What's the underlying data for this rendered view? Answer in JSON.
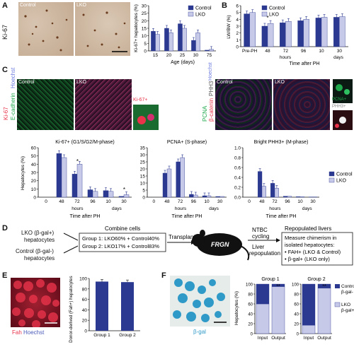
{
  "panel_letters": [
    "A",
    "B",
    "C",
    "D",
    "E",
    "F"
  ],
  "colors": {
    "control": "#2b3990",
    "lko": "#c7c9e8",
    "mid": "#4a5bb8",
    "red": "#e8334a",
    "green": "#1fa84b"
  },
  "panelA": {
    "side_label": "Ki-67",
    "img_labels": [
      "Control",
      "LKO"
    ]
  },
  "panelC": {
    "side_labels": [
      "Ki-67",
      "E-cadherin",
      "Hoechst"
    ],
    "right_side_labels": [
      "PCNA",
      "β-catenin",
      "PHH3",
      "Hoechst"
    ],
    "img_labels": [
      "Control",
      "LKO",
      "Control",
      "LKO"
    ],
    "inset_labels": [
      "Ki-67+",
      "PCNA+",
      "PHH3+"
    ]
  },
  "panelD": {
    "left1": "LKO (β-gal+)",
    "left1b": "hepatocytes",
    "left2": "Control (β-gal-)",
    "left2b": "hepatocytes",
    "combine_title": "Combine cells",
    "group1": "Group 1: LKO60% + Control40%",
    "group2": "Group 2: LKO17% + Control83%",
    "transplant": "Transplant",
    "mouse": "FRGN",
    "ntbc1": "NTBC",
    "ntbc2": "cycling",
    "liver1": "Liver",
    "liver2": "repopulation",
    "repop_title": "Repopulated livers",
    "repop_lines": [
      "Measure chimerism in",
      "isolated hepatocytes:",
      "• FAH+ (LKO & Control)",
      "• β-gal+ (LKO only)"
    ]
  },
  "panelE": {
    "img_labels": [
      "Fah",
      "Hoechst"
    ]
  },
  "panelF": {
    "img_label": "β-gal"
  },
  "chart_data": [
    {
      "id": "A",
      "type": "bar",
      "ylabel": "Ki-67+ hepatocytes (%)",
      "xlabel": "Age (days)",
      "categories": [
        "15",
        "20",
        "25",
        "30",
        "75"
      ],
      "ylim": [
        0,
        30
      ],
      "yticks": [
        0,
        5,
        10,
        15,
        20,
        25,
        30
      ],
      "legend": "top-right",
      "series": [
        {
          "name": "Control",
          "values": [
            13,
            15,
            18,
            7,
            0.5
          ]
        },
        {
          "name": "LKO",
          "values": [
            11,
            12,
            15,
            12,
            1
          ]
        }
      ]
    },
    {
      "id": "B",
      "type": "bar",
      "ylabel": "LW/BW (%)",
      "xlabel": "Time after PH",
      "categories": [
        "Pre-PH",
        "48",
        "72",
        "96",
        "10",
        "30"
      ],
      "group_labels": [
        "hours",
        "days"
      ],
      "ylim": [
        0,
        6
      ],
      "yticks": [
        0,
        1,
        2,
        3,
        4,
        5,
        6
      ],
      "legend": "top-left",
      "annotations": [
        "*"
      ],
      "series": [
        {
          "name": "Control",
          "values": [
            4.8,
            3.0,
            3.5,
            3.8,
            4.2,
            4.3
          ]
        },
        {
          "name": "LKO",
          "values": [
            5.0,
            3.4,
            3.7,
            4.0,
            4.3,
            4.4
          ]
        }
      ]
    },
    {
      "id": "C1",
      "type": "bar",
      "title": "Ki-67+ (G1/S/G2/M-phase)",
      "ylabel": "Hepatocytes (%)",
      "xlabel": "Time after PH",
      "categories": [
        "0",
        "48",
        "72",
        "96",
        "10",
        "30"
      ],
      "group_labels": [
        "hours",
        "days"
      ],
      "ylim": [
        0,
        60
      ],
      "yticks": [
        0,
        10,
        20,
        30,
        40,
        50,
        60
      ],
      "annotations": [
        "*",
        "*"
      ],
      "series": [
        {
          "name": "Control",
          "values": [
            0,
            53,
            28,
            9,
            8,
            1
          ]
        },
        {
          "name": "LKO",
          "values": [
            0,
            48,
            40,
            7,
            7,
            3
          ]
        }
      ]
    },
    {
      "id": "C2",
      "type": "bar",
      "title": "PCNA+ (S-phase)",
      "xlabel": "Time after PH",
      "categories": [
        "0",
        "48",
        "72",
        "96",
        "10",
        "30"
      ],
      "group_labels": [
        "hours",
        "days"
      ],
      "ylim": [
        0,
        35
      ],
      "yticks": [
        0,
        5,
        10,
        15,
        20,
        25,
        30,
        35
      ],
      "series": [
        {
          "name": "Control",
          "values": [
            0,
            17,
            25,
            2,
            1,
            0.5
          ]
        },
        {
          "name": "LKO",
          "values": [
            0,
            20,
            28,
            1.5,
            1,
            0.5
          ]
        }
      ]
    },
    {
      "id": "C3",
      "type": "bar",
      "title": "Bright PHH3+ (M-phase)",
      "xlabel": "Time after PH",
      "categories": [
        "0",
        "48",
        "72",
        "96",
        "10",
        "30"
      ],
      "group_labels": [
        "hours",
        "days"
      ],
      "ylim": [
        0,
        1.0
      ],
      "yticks": [
        0,
        0.2,
        0.4,
        0.6,
        0.8,
        1.0
      ],
      "legend": "right",
      "series": [
        {
          "name": "Control",
          "values": [
            0,
            0.52,
            0.28,
            0.02,
            0.01,
            0.005
          ]
        },
        {
          "name": "LKO",
          "values": [
            0,
            0.22,
            0.18,
            0.02,
            0.01,
            0.005
          ]
        }
      ]
    },
    {
      "id": "E",
      "type": "bar",
      "ylabel": "Donor-derived (Fah+) hepatocytes (%)",
      "categories": [
        "Group 1",
        "Group 2"
      ],
      "ylim": [
        0,
        100
      ],
      "yticks": [
        0,
        20,
        40,
        60,
        80,
        100
      ],
      "series": [
        {
          "name": "Fah+",
          "values": [
            94,
            93
          ]
        }
      ]
    },
    {
      "id": "F1",
      "type": "bar",
      "title": "Group 1",
      "ylabel": "Hepatocytes (%)",
      "categories": [
        "Input",
        "Output"
      ],
      "ylim": [
        0,
        100
      ],
      "yticks": [
        0,
        20,
        40,
        60,
        80,
        100
      ],
      "stacked": true,
      "annotations": [
        "**"
      ],
      "series": [
        {
          "name": "Control β-gal-",
          "values": [
            40,
            5
          ]
        },
        {
          "name": "LKO β-gal+",
          "values": [
            60,
            95
          ]
        }
      ]
    },
    {
      "id": "F2",
      "type": "bar",
      "title": "Group 2",
      "categories": [
        "Input",
        "Output"
      ],
      "ylim": [
        0,
        100
      ],
      "yticks": [
        0,
        20,
        40,
        60,
        80,
        100
      ],
      "stacked": true,
      "annotations": [
        "**"
      ],
      "legend": "right",
      "series": [
        {
          "name": "Control β-gal-",
          "values": [
            83,
            8
          ]
        },
        {
          "name": "LKO β-gal+",
          "values": [
            17,
            92
          ]
        }
      ]
    }
  ]
}
